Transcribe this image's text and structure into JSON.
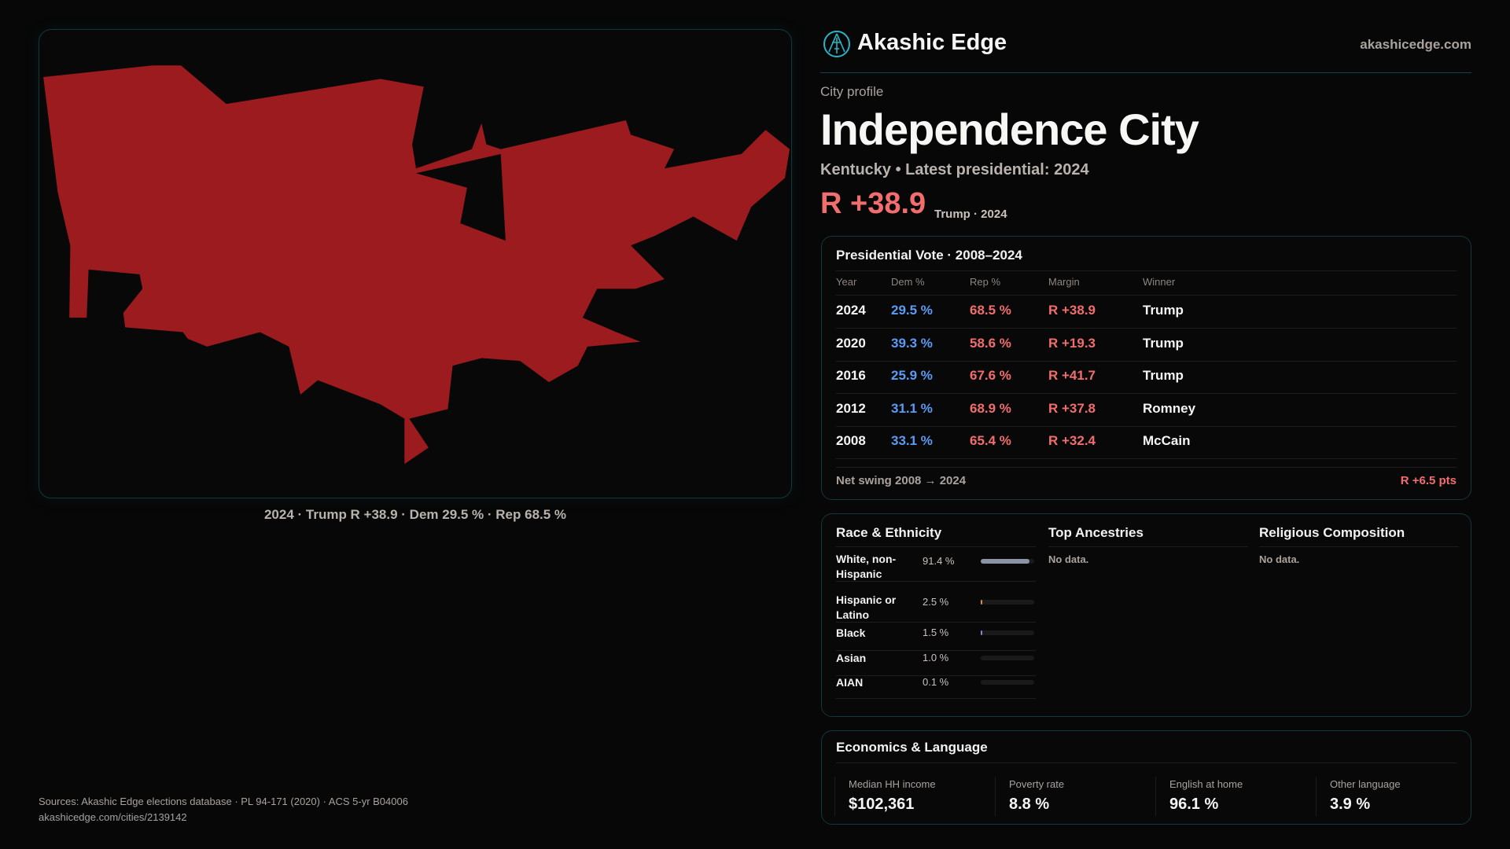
{
  "brand": {
    "name": "Akashic Edge",
    "site": "akashicedge.com",
    "logo_icon": "compass-figure-icon"
  },
  "profile": {
    "kicker": "City profile",
    "title": "Independence City",
    "subtitle": "Kentucky • Latest presidential: 2024",
    "margin": "R +38.9",
    "margin_sub": "Trump · 2024"
  },
  "map": {
    "caption": "2024 · Trump R +38.9 · Dem 29.5 % · Rep 68.5 %",
    "fill_color": "#9b1b1e"
  },
  "vote": {
    "title": "Presidential Vote · 2008–2024",
    "headers": [
      "Year",
      "Dem %",
      "Rep %",
      "Margin",
      "Winner"
    ],
    "rows": [
      [
        "2024",
        "29.5 %",
        "68.5 %",
        "R +38.9",
        "Trump"
      ],
      [
        "2020",
        "39.3 %",
        "58.6 %",
        "R +19.3",
        "Trump"
      ],
      [
        "2016",
        "25.9 %",
        "67.6 %",
        "R +41.7",
        "Trump"
      ],
      [
        "2012",
        "31.1 %",
        "68.9 %",
        "R +37.8",
        "Romney"
      ],
      [
        "2008",
        "33.1 %",
        "65.4 %",
        "R +32.4",
        "McCain"
      ]
    ],
    "swing_label": "Net swing 2008 → 2024",
    "swing_value": "R +6.5 pts"
  },
  "race": {
    "title": "Race & Ethnicity",
    "rows": [
      {
        "name": "White, non-Hispanic",
        "pct": "91.4 %",
        "value": 91.4,
        "color": "#8a94a6"
      },
      {
        "name": "Hispanic or Latino",
        "pct": "2.5 %",
        "value": 2.5,
        "color": "#e08a2a"
      },
      {
        "name": "Black",
        "pct": "1.5 %",
        "value": 1.5,
        "color": "#9a78e0"
      },
      {
        "name": "Asian",
        "pct": "1.0 %",
        "value": 1.0,
        "color": "#3a3a3e"
      },
      {
        "name": "AIAN",
        "pct": "0.1 %",
        "value": 0.1,
        "color": "#3a3a3e"
      }
    ]
  },
  "ancestries": {
    "title": "Top Ancestries",
    "empty": "No data."
  },
  "religion": {
    "title": "Religious Composition",
    "empty": "No data."
  },
  "econ": {
    "title": "Economics & Language",
    "items": [
      {
        "label": "Median HH income",
        "value": "$102,361"
      },
      {
        "label": "Poverty rate",
        "value": "8.8 %"
      },
      {
        "label": "English at home",
        "value": "96.1 %"
      },
      {
        "label": "Other language",
        "value": "3.9 %"
      }
    ]
  },
  "footer": {
    "sources": "Sources: Akashic Edge elections database · PL 94-171 (2020) · ACS 5-yr B04006",
    "url": "akashicedge.com/cities/2139142"
  }
}
